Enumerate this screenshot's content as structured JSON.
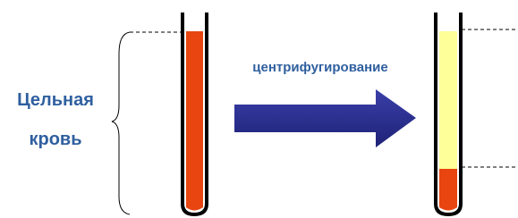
{
  "left_label": {
    "lines": [
      "Цельная",
      "кровь"
    ]
  },
  "arrow_label": "центрифугирование"
}
